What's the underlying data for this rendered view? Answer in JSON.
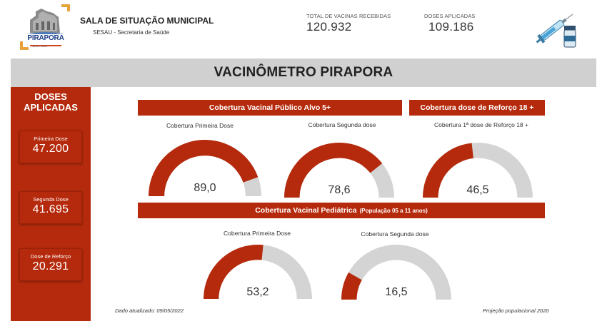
{
  "header": {
    "logo_name": "PIRAPORA",
    "logo_years": "1911 - 2021",
    "org_title": "SALA DE SITUAÇÃO MUNICIPAL",
    "org_subtitle": "SESAU - Secretaria de Saúde",
    "kpis": [
      {
        "label": "TOTAL DE VACINAS RECEBIDAS",
        "value": "120.932"
      },
      {
        "label": "DOSES APLICADAS",
        "value": "109.186"
      }
    ],
    "decor_icon": "syringe-vial-icon"
  },
  "title": "VACINÔMETRO PIRAPORA",
  "sidebar": {
    "title_line1": "DOSES",
    "title_line2": "APLICADAS",
    "cards": [
      {
        "label": "Primeira Dose",
        "value": "47.200"
      },
      {
        "label": "Segunda Dose",
        "value": "41.695"
      },
      {
        "label": "Dose de Reforço",
        "value": "20.291"
      }
    ]
  },
  "sections": {
    "target": "Cobertura Vacinal Público Alvo 5+",
    "booster": "Cobertura dose de Reforço 18 +",
    "pediatric": "Cobertura Vacinal Pediátrica",
    "pediatric_note": "(População 05 a 11 anos)"
  },
  "gauges": [
    {
      "label": "Cobertura Primeira Dose",
      "value": 89.0,
      "display": "89,0",
      "max": 100
    },
    {
      "label": "Cobertura Segunda dose",
      "value": 78.6,
      "display": "78,6",
      "max": 100
    },
    {
      "label": "Cobertura 1ª dose de Reforço 18 +",
      "value": 46.5,
      "display": "46,5",
      "max": 100
    },
    {
      "label": "Cobertura Primeira Dose",
      "value": 53.2,
      "display": "53,2",
      "max": 100
    },
    {
      "label": "Cobertura Segunda dose",
      "value": 16.5,
      "display": "16,5",
      "max": 100
    }
  ],
  "colors": {
    "primary": "#b52a0c",
    "track": "#d4d4d4",
    "title_bar": "#d0d0d0"
  },
  "footer": {
    "updated": "Dado atualizado: 09/05/2022",
    "projection": "Projeção populacional 2020"
  }
}
